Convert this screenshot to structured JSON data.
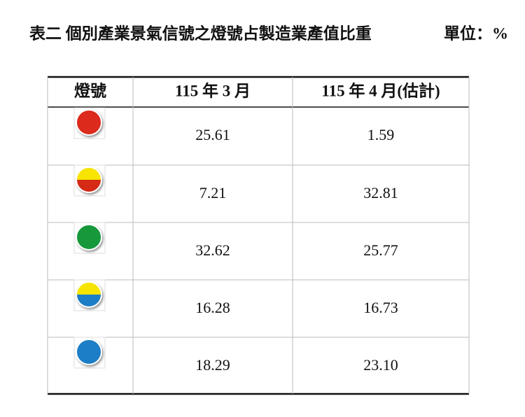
{
  "title": "表二 個別產業景氣信號之燈號占製造業產值比重",
  "unit": "單位：%",
  "table": {
    "header": [
      "燈號",
      "115 年 3 月",
      "115 年 4 月(估計)"
    ],
    "rows": [
      [
        "25.61",
        "1.59"
      ],
      [
        "7.21",
        "32.81"
      ],
      [
        "32.62",
        "25.77"
      ],
      [
        "16.28",
        "16.73"
      ],
      [
        "18.29",
        "23.10"
      ]
    ]
  }
}
